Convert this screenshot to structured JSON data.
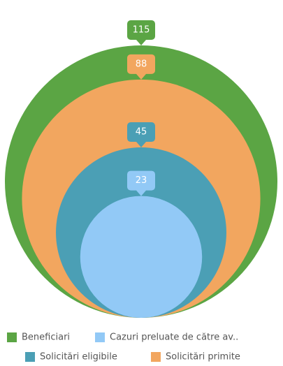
{
  "chart_data": {
    "type": "nested_circles",
    "series": [
      {
        "name": "Beneficiari",
        "color": "#5ba544",
        "values": [
          115
        ]
      },
      {
        "name": "Solicitări primite",
        "color": "#f2a65f",
        "values": [
          88
        ]
      },
      {
        "name": "Solicitări eligibile",
        "color": "#4b9fb5",
        "values": [
          45
        ]
      },
      {
        "name": "Cazuri preluate de către av..",
        "color": "#92c9f6",
        "values": [
          23
        ]
      }
    ],
    "legend": "bottom"
  }
}
